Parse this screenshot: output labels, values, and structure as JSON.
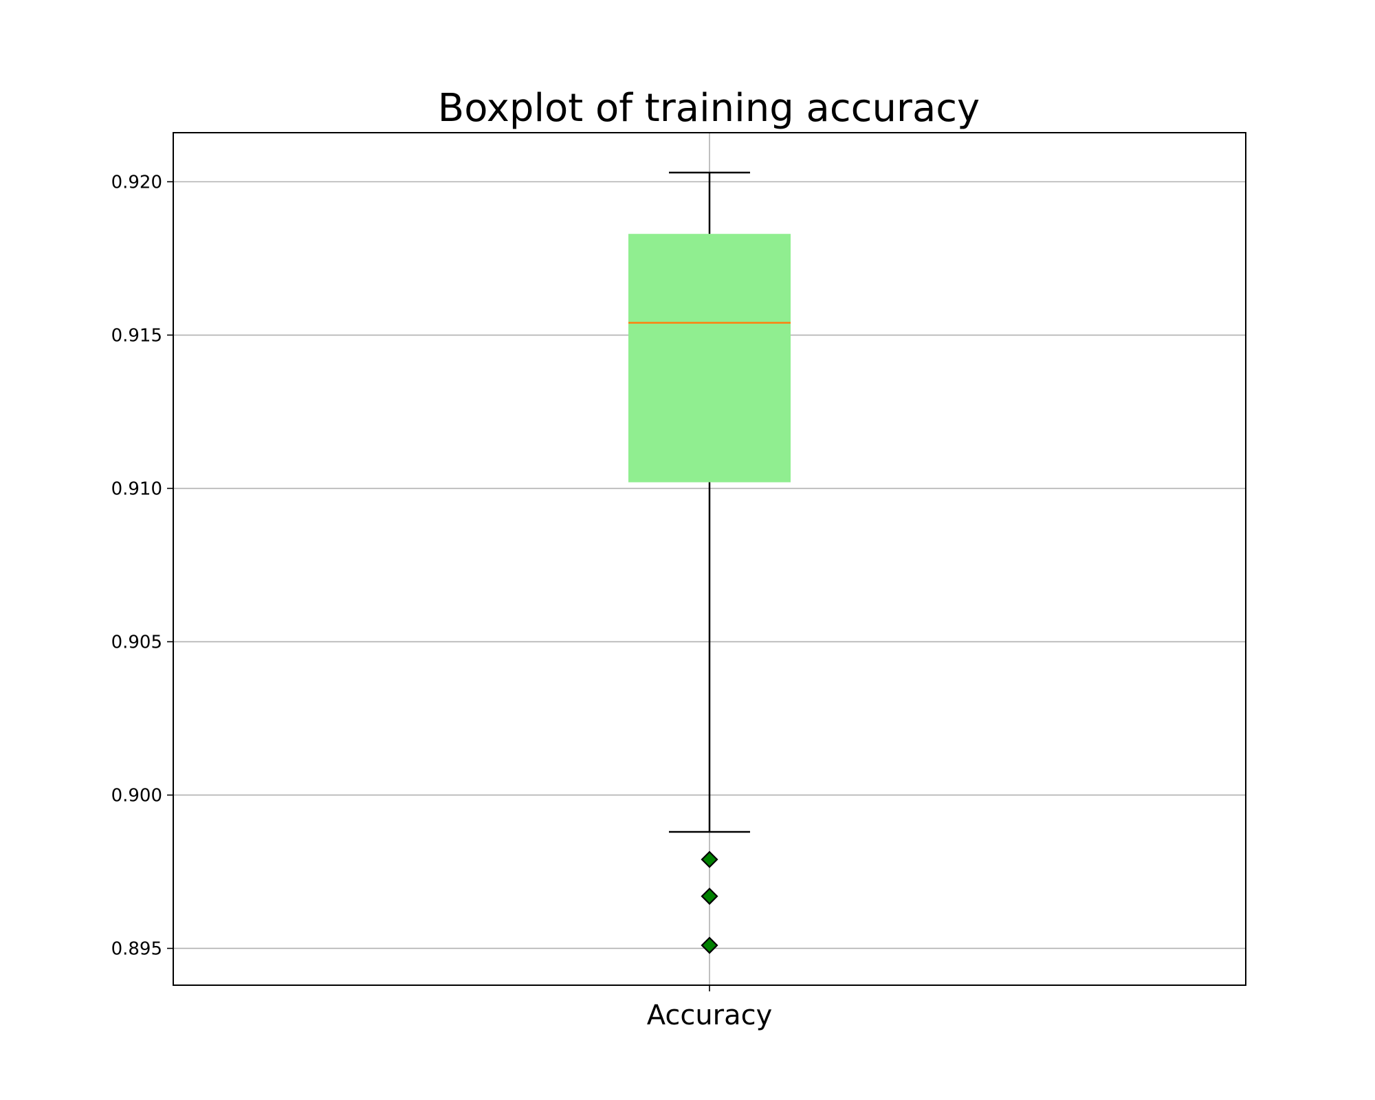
{
  "chart_data": {
    "type": "box",
    "title": "Boxplot of training accuracy",
    "xlabel": "",
    "ylabel": "",
    "categories": [
      "Accuracy"
    ],
    "series": [
      {
        "whisker_low": 0.8988,
        "q1": 0.9102,
        "median": 0.9154,
        "q3": 0.9183,
        "whisker_high": 0.9203,
        "outliers": [
          0.8979,
          0.8967,
          0.8951
        ]
      }
    ],
    "ylim": [
      0.8938,
      0.9216
    ],
    "yticks": [
      "0.895",
      "0.900",
      "0.905",
      "0.910",
      "0.915",
      "0.920"
    ],
    "grid": true,
    "colors": {
      "box_fill": "#90ee90",
      "median": "#ff7f0e",
      "outlier_fill": "#008000",
      "grid": "#b0b0b0"
    }
  }
}
